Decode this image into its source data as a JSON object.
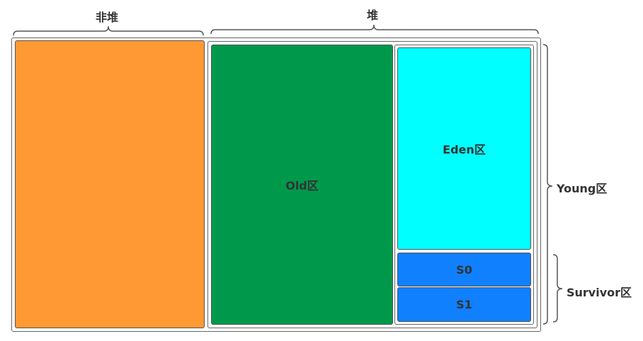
{
  "labels": {
    "non_heap": "非堆",
    "heap": "堆",
    "young": "Young区",
    "survivor": "Survivor区"
  },
  "regions": {
    "non_heap": {
      "label": "",
      "color": "#FF9933"
    },
    "old": {
      "label": "Old区",
      "color": "#00994C"
    },
    "eden": {
      "label": "Eden区",
      "color": "#00FFFF"
    },
    "s0": {
      "label": "S0",
      "color": "#1080FF"
    },
    "s1": {
      "label": "S1",
      "color": "#1080FF"
    }
  }
}
